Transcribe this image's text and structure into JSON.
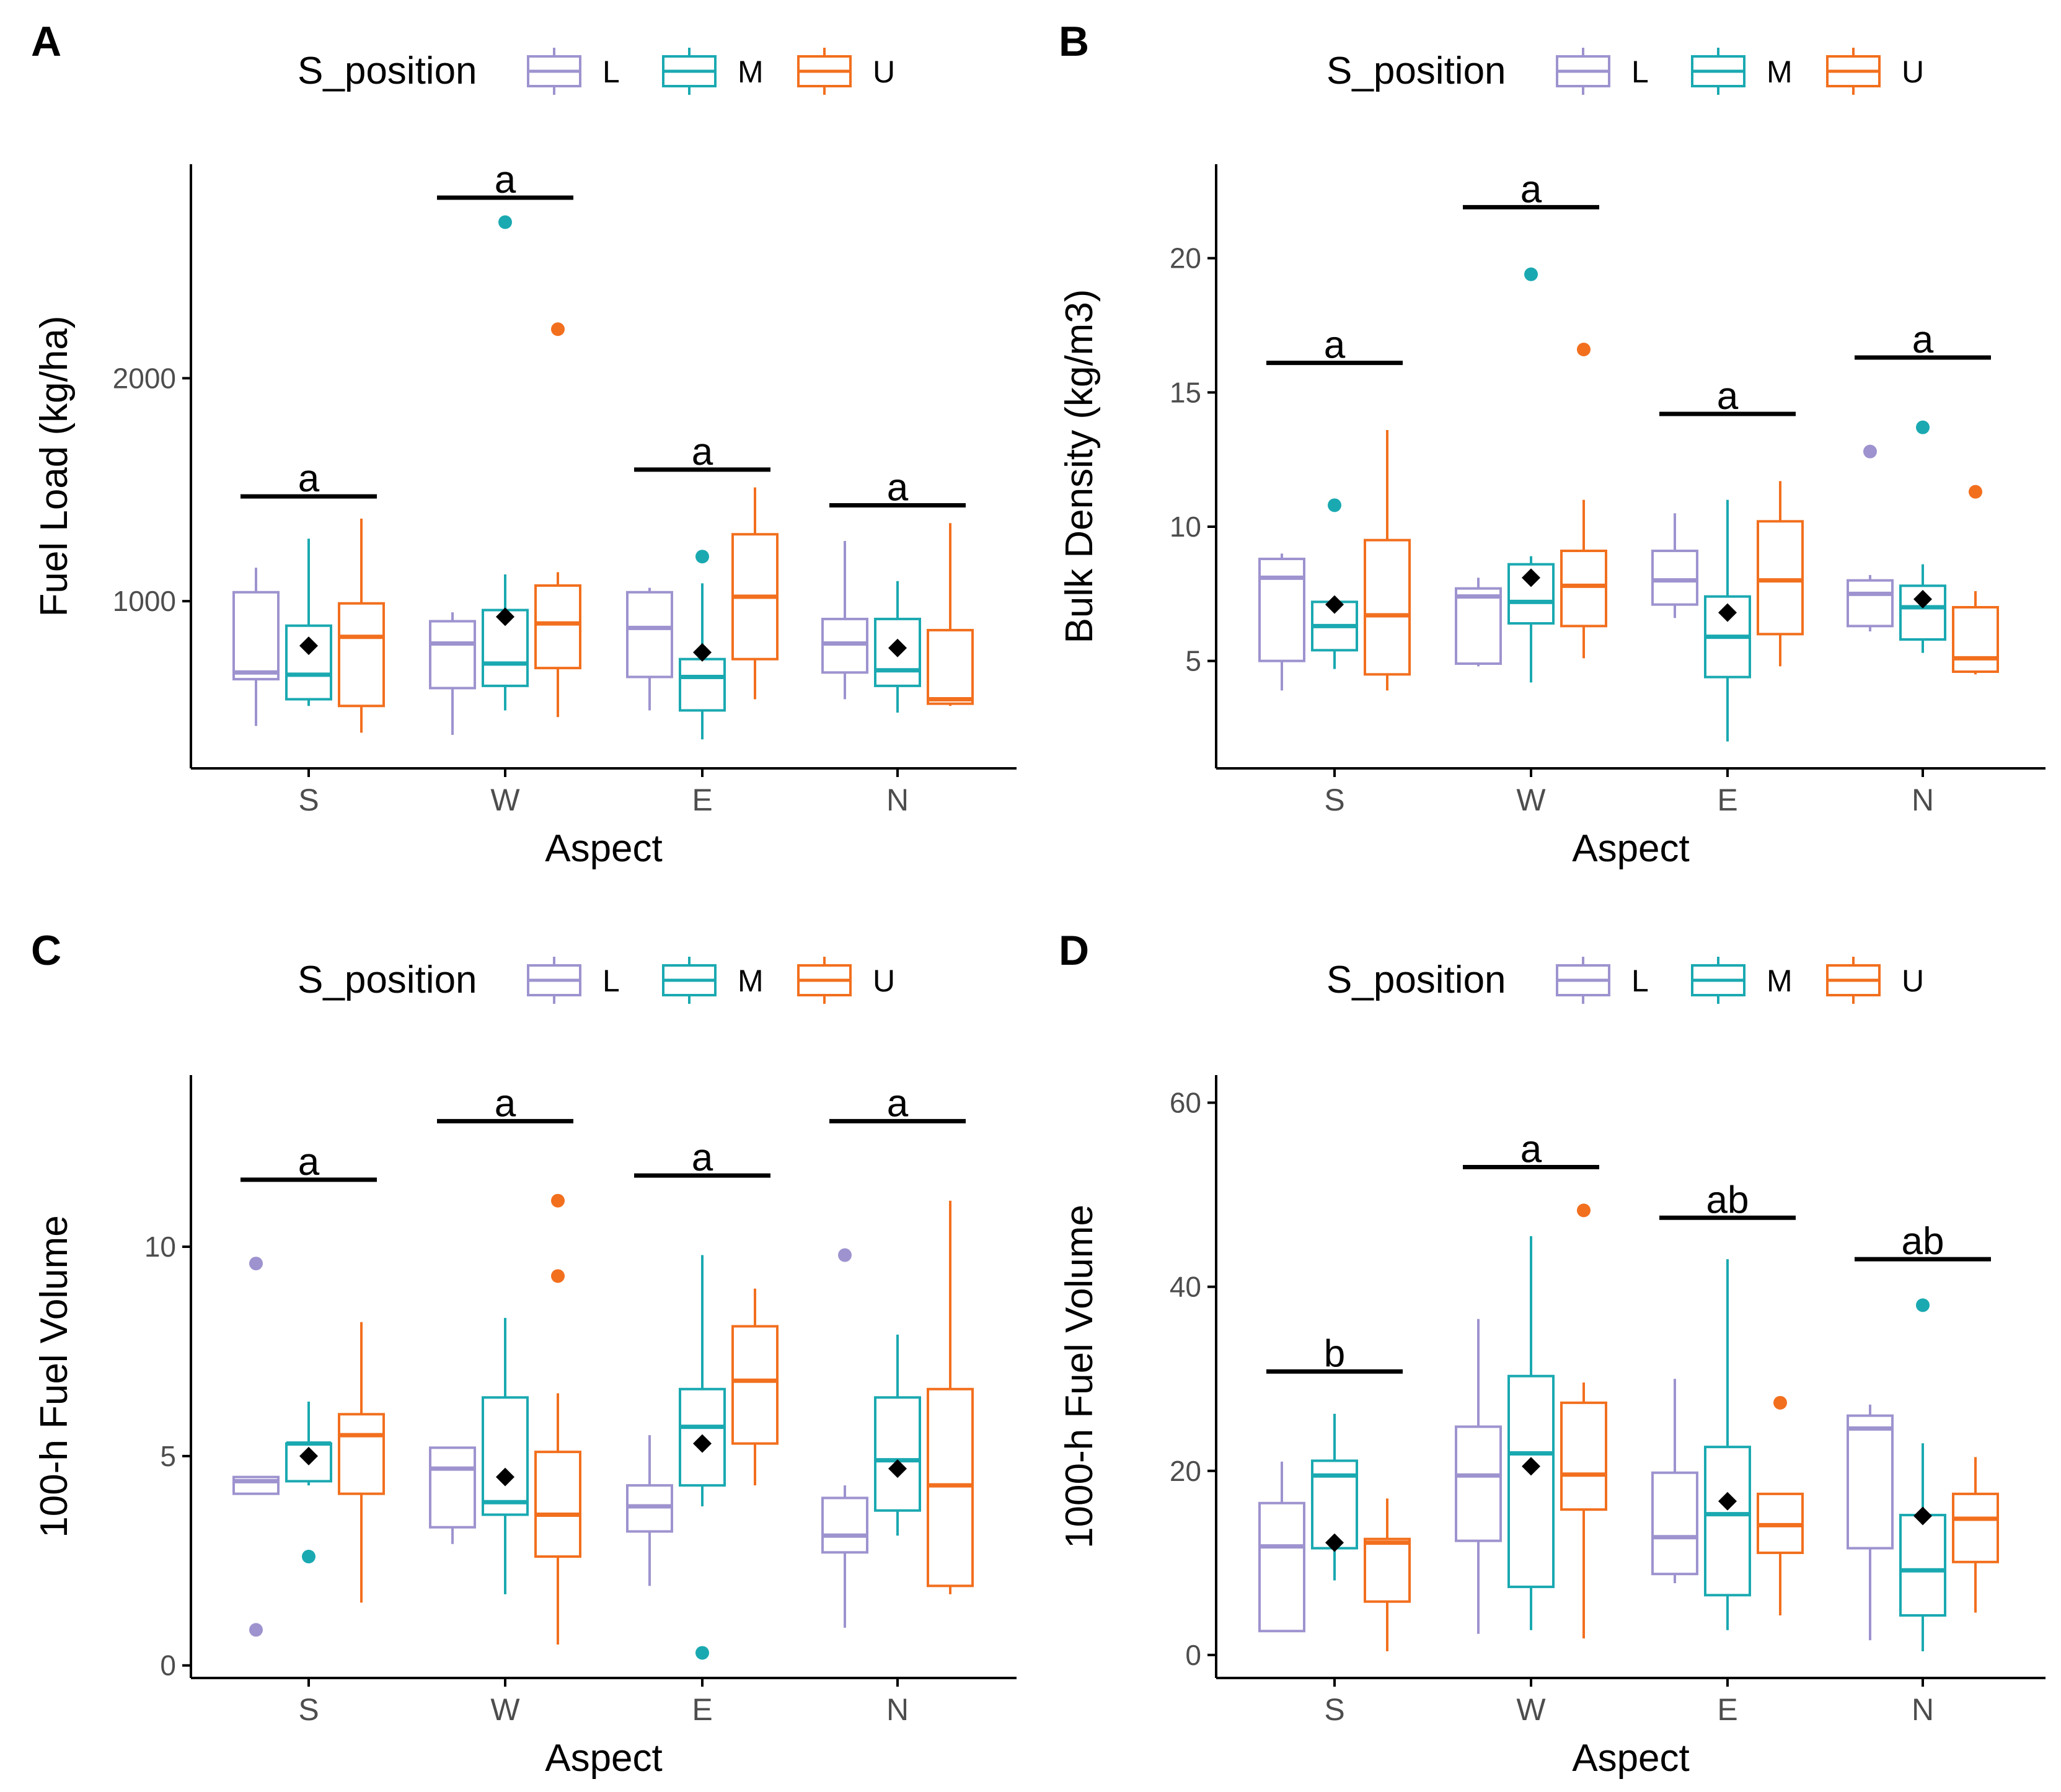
{
  "colors": {
    "L": "#9e93cf",
    "M": "#1aa9b1",
    "U": "#f26f1e",
    "mean": "#000000",
    "axis": "#000000"
  },
  "legend": {
    "title": "S_position",
    "items": [
      {
        "key": "L",
        "label": "L"
      },
      {
        "key": "M",
        "label": "M"
      },
      {
        "key": "U",
        "label": "U"
      }
    ]
  },
  "chart_data": [
    {
      "panel": "A",
      "type": "boxplot",
      "xlabel": "Aspect",
      "ylabel": "Fuel Load (kg/ha)",
      "categories": [
        "S",
        "W",
        "E",
        "N"
      ],
      "ylim": [
        250,
        2960
      ],
      "yticks": [
        1000,
        2000
      ],
      "groups": [
        {
          "cat": "S",
          "letter": "a",
          "bar_y": 1470,
          "mean": 800,
          "boxes": [
            {
              "series": "L",
              "whislo": 440,
              "q1": 650,
              "med": 680,
              "q3": 1040,
              "whishi": 1150,
              "out": []
            },
            {
              "series": "M",
              "whislo": 530,
              "q1": 560,
              "med": 670,
              "q3": 890,
              "whishi": 1280,
              "out": []
            },
            {
              "series": "U",
              "whislo": 410,
              "q1": 530,
              "med": 840,
              "q3": 990,
              "whishi": 1370,
              "out": []
            }
          ]
        },
        {
          "cat": "W",
          "letter": "a",
          "bar_y": 2810,
          "mean": 930,
          "boxes": [
            {
              "series": "L",
              "whislo": 400,
              "q1": 610,
              "med": 810,
              "q3": 910,
              "whishi": 950,
              "out": []
            },
            {
              "series": "M",
              "whislo": 510,
              "q1": 620,
              "med": 720,
              "q3": 960,
              "whishi": 1120,
              "out": [
                2700
              ]
            },
            {
              "series": "U",
              "whislo": 480,
              "q1": 700,
              "med": 900,
              "q3": 1070,
              "whishi": 1130,
              "out": [
                2220
              ]
            }
          ]
        },
        {
          "cat": "E",
          "letter": "a",
          "bar_y": 1590,
          "mean": 770,
          "boxes": [
            {
              "series": "L",
              "whislo": 510,
              "q1": 660,
              "med": 880,
              "q3": 1040,
              "whishi": 1060,
              "out": []
            },
            {
              "series": "M",
              "whislo": 380,
              "q1": 510,
              "med": 660,
              "q3": 740,
              "whishi": 1080,
              "out": [
                1200
              ]
            },
            {
              "series": "U",
              "whislo": 560,
              "q1": 740,
              "med": 1020,
              "q3": 1300,
              "whishi": 1510,
              "out": []
            }
          ]
        },
        {
          "cat": "N",
          "letter": "a",
          "bar_y": 1430,
          "mean": 790,
          "boxes": [
            {
              "series": "L",
              "whislo": 560,
              "q1": 680,
              "med": 810,
              "q3": 920,
              "whishi": 1270,
              "out": []
            },
            {
              "series": "M",
              "whislo": 500,
              "q1": 620,
              "med": 690,
              "q3": 920,
              "whishi": 1090,
              "out": []
            },
            {
              "series": "U",
              "whislo": 530,
              "q1": 540,
              "med": 560,
              "q3": 870,
              "whishi": 1350,
              "out": []
            }
          ]
        }
      ]
    },
    {
      "panel": "B",
      "type": "boxplot",
      "xlabel": "Aspect",
      "ylabel": "Bulk Density (kg/m3)",
      "categories": [
        "S",
        "W",
        "E",
        "N"
      ],
      "ylim": [
        1,
        23.5
      ],
      "yticks": [
        5,
        10,
        15,
        20
      ],
      "groups": [
        {
          "cat": "S",
          "letter": "a",
          "bar_y": 16.1,
          "mean": 7.1,
          "boxes": [
            {
              "series": "L",
              "whislo": 3.9,
              "q1": 5.0,
              "med": 8.1,
              "q3": 8.8,
              "whishi": 9.0,
              "out": []
            },
            {
              "series": "M",
              "whislo": 4.7,
              "q1": 5.4,
              "med": 6.3,
              "q3": 7.2,
              "whishi": 7.4,
              "out": [
                10.8
              ]
            },
            {
              "series": "U",
              "whislo": 3.9,
              "q1": 4.5,
              "med": 6.7,
              "q3": 9.5,
              "whishi": 13.6,
              "out": []
            }
          ]
        },
        {
          "cat": "W",
          "letter": "a",
          "bar_y": 21.9,
          "mean": 8.1,
          "boxes": [
            {
              "series": "L",
              "whislo": 4.8,
              "q1": 4.9,
              "med": 7.4,
              "q3": 7.7,
              "whishi": 8.1,
              "out": []
            },
            {
              "series": "M",
              "whislo": 4.2,
              "q1": 6.4,
              "med": 7.2,
              "q3": 8.6,
              "whishi": 8.9,
              "out": [
                19.4
              ]
            },
            {
              "series": "U",
              "whislo": 5.1,
              "q1": 6.3,
              "med": 7.8,
              "q3": 9.1,
              "whishi": 11.0,
              "out": [
                16.6
              ]
            }
          ]
        },
        {
          "cat": "E",
          "letter": "a",
          "bar_y": 14.2,
          "mean": 6.8,
          "boxes": [
            {
              "series": "L",
              "whislo": 6.6,
              "q1": 7.1,
              "med": 8.0,
              "q3": 9.1,
              "whishi": 10.5,
              "out": []
            },
            {
              "series": "M",
              "whislo": 2.0,
              "q1": 4.4,
              "med": 5.9,
              "q3": 7.4,
              "whishi": 11.0,
              "out": []
            },
            {
              "series": "U",
              "whislo": 4.8,
              "q1": 6.0,
              "med": 8.0,
              "q3": 10.2,
              "whishi": 11.7,
              "out": []
            }
          ]
        },
        {
          "cat": "N",
          "letter": "a",
          "bar_y": 16.3,
          "mean": 7.3,
          "boxes": [
            {
              "series": "L",
              "whislo": 6.1,
              "q1": 6.3,
              "med": 7.5,
              "q3": 8.0,
              "whishi": 8.2,
              "out": [
                12.8
              ]
            },
            {
              "series": "M",
              "whislo": 5.3,
              "q1": 5.8,
              "med": 7.0,
              "q3": 7.8,
              "whishi": 8.6,
              "out": [
                13.7
              ]
            },
            {
              "series": "U",
              "whislo": 4.5,
              "q1": 4.6,
              "med": 5.1,
              "q3": 7.0,
              "whishi": 7.6,
              "out": [
                11.3
              ]
            }
          ]
        }
      ]
    },
    {
      "panel": "C",
      "type": "boxplot",
      "xlabel": "Aspect",
      "ylabel": "100-h Fuel Volume",
      "categories": [
        "S",
        "W",
        "E",
        "N"
      ],
      "ylim": [
        -0.3,
        14.1
      ],
      "yticks": [
        0,
        5,
        10
      ],
      "groups": [
        {
          "cat": "S",
          "letter": "a",
          "bar_y": 11.6,
          "mean": 5.0,
          "boxes": [
            {
              "series": "L",
              "whislo": 4.1,
              "q1": 4.1,
              "med": 4.4,
              "q3": 4.5,
              "whishi": 4.5,
              "out": [
                9.6,
                0.85
              ]
            },
            {
              "series": "M",
              "whislo": 4.3,
              "q1": 4.4,
              "med": 5.3,
              "q3": 5.3,
              "whishi": 6.3,
              "out": [
                2.6
              ]
            },
            {
              "series": "U",
              "whislo": 1.5,
              "q1": 4.1,
              "med": 5.5,
              "q3": 6.0,
              "whishi": 8.2,
              "out": []
            }
          ]
        },
        {
          "cat": "W",
          "letter": "a",
          "bar_y": 13.0,
          "mean": 4.5,
          "boxes": [
            {
              "series": "L",
              "whislo": 2.9,
              "q1": 3.3,
              "med": 4.7,
              "q3": 5.2,
              "whishi": 5.2,
              "out": []
            },
            {
              "series": "M",
              "whislo": 1.7,
              "q1": 3.6,
              "med": 3.9,
              "q3": 6.4,
              "whishi": 8.3,
              "out": []
            },
            {
              "series": "U",
              "whislo": 0.5,
              "q1": 2.6,
              "med": 3.6,
              "q3": 5.1,
              "whishi": 6.5,
              "out": [
                11.1,
                9.3
              ]
            }
          ]
        },
        {
          "cat": "E",
          "letter": "a",
          "bar_y": 11.7,
          "mean": 5.3,
          "boxes": [
            {
              "series": "L",
              "whislo": 1.9,
              "q1": 3.2,
              "med": 3.8,
              "q3": 4.3,
              "whishi": 5.5,
              "out": []
            },
            {
              "series": "M",
              "whislo": 3.8,
              "q1": 4.3,
              "med": 5.7,
              "q3": 6.6,
              "whishi": 9.8,
              "out": [
                0.3
              ]
            },
            {
              "series": "U",
              "whislo": 4.3,
              "q1": 5.3,
              "med": 6.8,
              "q3": 8.1,
              "whishi": 9.0,
              "out": []
            }
          ]
        },
        {
          "cat": "N",
          "letter": "a",
          "bar_y": 13.0,
          "mean": 4.7,
          "boxes": [
            {
              "series": "L",
              "whislo": 0.9,
              "q1": 2.7,
              "med": 3.1,
              "q3": 4.0,
              "whishi": 4.3,
              "out": [
                9.8
              ]
            },
            {
              "series": "M",
              "whislo": 3.1,
              "q1": 3.7,
              "med": 4.9,
              "q3": 6.4,
              "whishi": 7.9,
              "out": []
            },
            {
              "series": "U",
              "whislo": 1.7,
              "q1": 1.9,
              "med": 4.3,
              "q3": 6.6,
              "whishi": 11.1,
              "out": []
            }
          ]
        }
      ]
    },
    {
      "panel": "D",
      "type": "boxplot",
      "xlabel": "Aspect",
      "ylabel": "1000-h Fuel Volume",
      "categories": [
        "S",
        "W",
        "E",
        "N"
      ],
      "ylim": [
        -2.5,
        63
      ],
      "yticks": [
        0,
        20,
        40,
        60
      ],
      "groups": [
        {
          "cat": "S",
          "letter": "b",
          "bar_y": 30.8,
          "mean": 12.2,
          "boxes": [
            {
              "series": "L",
              "whislo": 2.5,
              "q1": 2.6,
              "med": 11.8,
              "q3": 16.5,
              "whishi": 21.0,
              "out": []
            },
            {
              "series": "M",
              "whislo": 8.1,
              "q1": 11.6,
              "med": 19.5,
              "q3": 21.1,
              "whishi": 26.2,
              "out": []
            },
            {
              "series": "U",
              "whislo": 0.4,
              "q1": 5.8,
              "med": 12.2,
              "q3": 12.6,
              "whishi": 17.0,
              "out": []
            }
          ]
        },
        {
          "cat": "W",
          "letter": "a",
          "bar_y": 53.0,
          "mean": 20.5,
          "boxes": [
            {
              "series": "L",
              "whislo": 2.3,
              "q1": 12.4,
              "med": 19.5,
              "q3": 24.8,
              "whishi": 36.5,
              "out": []
            },
            {
              "series": "M",
              "whislo": 2.7,
              "q1": 7.4,
              "med": 21.9,
              "q3": 30.3,
              "whishi": 45.5,
              "out": []
            },
            {
              "series": "U",
              "whislo": 1.8,
              "q1": 15.8,
              "med": 19.6,
              "q3": 27.4,
              "whishi": 29.6,
              "out": [
                48.3
              ]
            }
          ]
        },
        {
          "cat": "E",
          "letter": "ab",
          "bar_y": 47.5,
          "mean": 16.7,
          "boxes": [
            {
              "series": "L",
              "whislo": 7.8,
              "q1": 8.8,
              "med": 12.8,
              "q3": 19.8,
              "whishi": 30.0,
              "out": []
            },
            {
              "series": "M",
              "whislo": 2.7,
              "q1": 6.5,
              "med": 15.3,
              "q3": 22.6,
              "whishi": 43.0,
              "out": []
            },
            {
              "series": "U",
              "whislo": 4.3,
              "q1": 11.1,
              "med": 14.1,
              "q3": 17.5,
              "whishi": 17.5,
              "out": [
                27.4
              ]
            }
          ]
        },
        {
          "cat": "N",
          "letter": "ab",
          "bar_y": 43.0,
          "mean": 15.1,
          "boxes": [
            {
              "series": "L",
              "whislo": 1.6,
              "q1": 11.6,
              "med": 24.6,
              "q3": 26.0,
              "whishi": 27.2,
              "out": []
            },
            {
              "series": "M",
              "whislo": 0.4,
              "q1": 4.3,
              "med": 9.2,
              "q3": 15.2,
              "whishi": 23.0,
              "out": [
                38.0
              ]
            },
            {
              "series": "U",
              "whislo": 4.6,
              "q1": 10.1,
              "med": 14.8,
              "q3": 17.5,
              "whishi": 21.5,
              "out": []
            }
          ]
        }
      ]
    }
  ]
}
